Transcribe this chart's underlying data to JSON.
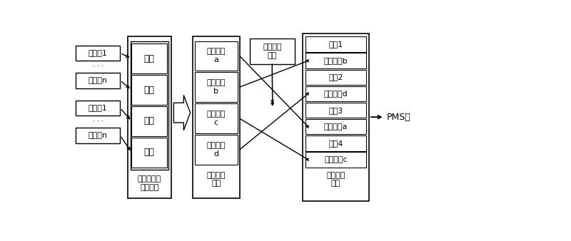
{
  "fig_width": 8.0,
  "fig_height": 3.38,
  "dpi": 100,
  "encoders": [
    "编码器1",
    "编码器n"
  ],
  "muxers": [
    "复用器1",
    "复用器n"
  ],
  "buffers": [
    "缓存",
    "缓存",
    "缓存",
    "缓存"
  ],
  "subframes_top_to_bottom": [
    "复用子帟\na",
    "复用子帟\nb",
    "复用子帟\nc",
    "复用子帟\nd"
  ],
  "mgmt_label": "业务管理\n模块",
  "biz_build_label": "业务构建\n模块",
  "adapt_label": "自适应输入\n识别模块",
  "output_cells_top_to_bottom": [
    "复帟1",
    "复用子帟b",
    "复帟2",
    "复用子帟d",
    "复帟3",
    "复用子帟a",
    "复帟4",
    "复用子帟c"
  ],
  "reconstruct_label": "复帟构建\n模块",
  "pms_label": "PMS流",
  "dots": "···"
}
